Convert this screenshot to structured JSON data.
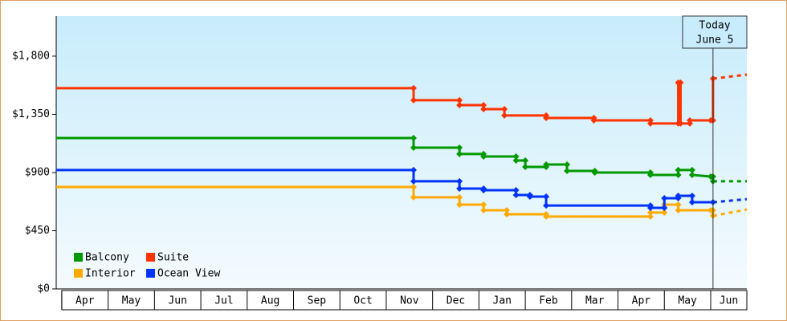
{
  "chart_data": {
    "type": "line",
    "categories": [
      "Apr",
      "May",
      "Jun",
      "Jul",
      "Aug",
      "Sep",
      "Oct",
      "Nov",
      "Dec",
      "Jan",
      "Feb",
      "Mar",
      "Apr",
      "May",
      "Jun"
    ],
    "xlim": [
      -0.12,
      14.78
    ],
    "ylim": [
      0,
      2110
    ],
    "yticks": [
      {
        "value": 0,
        "label": "$0"
      },
      {
        "value": 450,
        "label": "$450"
      },
      {
        "value": 900,
        "label": "$900"
      },
      {
        "value": 1350,
        "label": "$1,350"
      },
      {
        "value": 1800,
        "label": "$1,800"
      }
    ],
    "annotation": {
      "x": 14.05,
      "lines": [
        "Today",
        "June 5"
      ]
    },
    "legend": "lower left",
    "series": [
      {
        "name": "Balcony",
        "color": "#009900",
        "x": [
          -0.12,
          7.59,
          7.59,
          8.58,
          8.58,
          9.1,
          9.1,
          9.8,
          9.8,
          10.0,
          10.0,
          10.45,
          10.45,
          10.9,
          10.9,
          11.5,
          11.5,
          12.7,
          12.7,
          13.3,
          13.3,
          13.6,
          13.6,
          14.0,
          14.05,
          14.05
        ],
        "values": [
          1167,
          1167,
          1092,
          1092,
          1043,
          1043,
          1024,
          1024,
          993,
          993,
          943,
          943,
          962,
          962,
          912,
          912,
          900,
          900,
          881,
          881,
          919,
          919,
          881,
          869,
          869,
          832
        ],
        "forecast": {
          "x": [
            14.05,
            14.78
          ],
          "values": [
            832,
            832
          ]
        }
      },
      {
        "name": "Suite",
        "color": "#ff3300",
        "x": [
          -0.12,
          7.59,
          7.59,
          8.58,
          8.58,
          9.1,
          9.1,
          9.55,
          9.55,
          10.45,
          10.45,
          11.48,
          11.48,
          12.7,
          12.7,
          13.3,
          13.3,
          13.35,
          13.35,
          13.55,
          13.55,
          14.0,
          14.05,
          14.05
        ],
        "values": [
          1552,
          1552,
          1459,
          1459,
          1421,
          1421,
          1390,
          1390,
          1341,
          1341,
          1322,
          1322,
          1303,
          1303,
          1279,
          1279,
          1595,
          1595,
          1279,
          1279,
          1303,
          1303,
          1303,
          1626
        ],
        "forecast": {
          "x": [
            14.05,
            14.78
          ],
          "values": [
            1626,
            1657
          ]
        }
      },
      {
        "name": "Interior",
        "color": "#ffaa00",
        "x": [
          -0.12,
          7.59,
          7.59,
          8.58,
          8.58,
          9.1,
          9.1,
          9.6,
          9.6,
          10.45,
          10.45,
          12.7,
          12.7,
          13.0,
          13.0,
          13.3,
          13.3,
          14.0,
          14.05,
          14.05
        ],
        "values": [
          788,
          788,
          708,
          708,
          652,
          652,
          608,
          608,
          577,
          577,
          559,
          559,
          590,
          590,
          652,
          652,
          608,
          608,
          608,
          565
        ],
        "forecast": {
          "x": [
            14.05,
            14.78
          ],
          "values": [
            565,
            614
          ]
        }
      },
      {
        "name": "Ocean View",
        "color": "#0033ff",
        "x": [
          -0.12,
          7.59,
          7.59,
          8.58,
          8.58,
          9.1,
          9.1,
          9.8,
          9.8,
          10.1,
          10.1,
          10.45,
          10.45,
          12.7,
          12.7,
          13.0,
          13.0,
          13.3,
          13.3,
          13.6,
          13.6,
          14.05
        ],
        "values": [
          919,
          919,
          832,
          832,
          776,
          776,
          763,
          763,
          726,
          726,
          714,
          714,
          645,
          645,
          627,
          627,
          701,
          701,
          720,
          720,
          670,
          670
        ],
        "forecast": {
          "x": [
            14.05,
            14.78
          ],
          "values": [
            670,
            694
          ]
        }
      }
    ]
  }
}
